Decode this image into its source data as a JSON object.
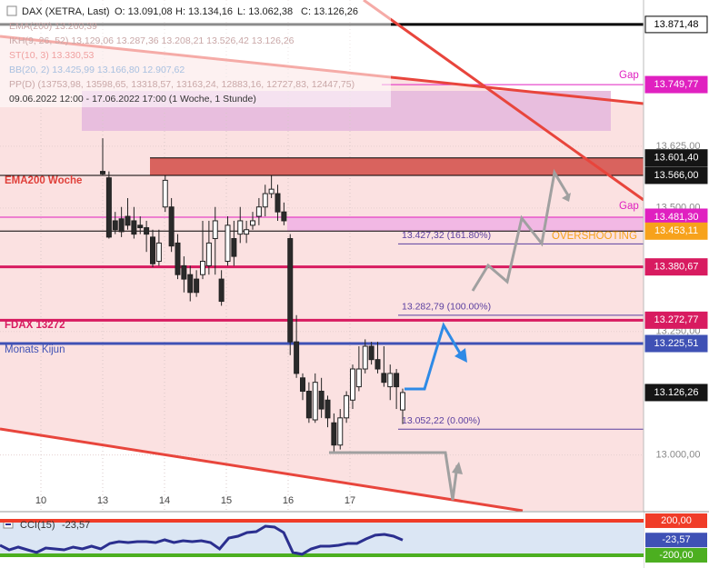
{
  "chart_data": {
    "type": "candlestick",
    "legend": {
      "symbol": "DAX (XETRA, Last)",
      "open": "O: 13.091,08",
      "high": "H: 13.134,16",
      "low": "L: 13.062,38",
      "close": "C: 13.126,26"
    },
    "indicators": [
      "EMA(200)  13.260,39",
      "IKH(9, 26, 52)  13.129,06  13.287,36  13.208,21  13.526,42  13.126,26",
      "ST(10, 3)  13.330,53",
      "BB(20, 2)  13.425,99  13.166,80  12.907,62",
      "PP(D)  (13753,98, 13598,65, 13318,57, 13163,24, 12883,16, 12727,83, 12447,75)"
    ],
    "period": "09.06.2022 12:00 - 17.06.2022 17:00   (1 Woche, 1 Stunde)",
    "days": [
      "10",
      "13",
      "14",
      "15",
      "16",
      "17"
    ],
    "candles": {
      "open": [
        13574,
        13561,
        13474,
        13478,
        13483,
        13474,
        13465,
        13460,
        13441,
        13392,
        13502,
        13502,
        13429,
        13383,
        13365,
        13356,
        13365,
        13383,
        13438,
        13356,
        13392,
        13438,
        13447,
        13447,
        13465,
        13483,
        13502,
        13529,
        13529,
        13492,
        13438,
        13229,
        13156,
        13129,
        13071,
        13129,
        13111,
        13065,
        13020,
        13075,
        13111,
        13138,
        13174,
        13220,
        13193,
        13165,
        13138,
        13165,
        13091.08
      ],
      "high": [
        13641,
        13574,
        13492,
        13502,
        13520,
        13502,
        13483,
        13474,
        13456,
        13456,
        13565,
        13520,
        13447,
        13402,
        13383,
        13374,
        13474,
        13474,
        13502,
        13374,
        13483,
        13474,
        13502,
        13474,
        13492,
        13520,
        13547,
        13565,
        13547,
        13511,
        13447,
        13283,
        13165,
        13147,
        13165,
        13156,
        13120,
        13084,
        13093,
        13129,
        13183,
        13220,
        13234,
        13229,
        13229,
        13220,
        13183,
        13174,
        13134.16
      ],
      "low": [
        13565,
        13438,
        13447,
        13441,
        13456,
        13438,
        13447,
        13411,
        13380,
        13383,
        13492,
        13411,
        13356,
        13329,
        13311,
        13320,
        13356,
        13365,
        13365,
        13302,
        13383,
        13383,
        13429,
        13429,
        13456,
        13465,
        13483,
        13520,
        13474,
        13465,
        13202,
        13156,
        13111,
        13065,
        13065,
        13075,
        13056,
        13007,
        13011,
        13065,
        13093,
        13129,
        13165,
        13183,
        13165,
        13138,
        13111,
        13093,
        13062.38
      ],
      "close": [
        13569,
        13441,
        13456,
        13452,
        13465,
        13447,
        13460,
        13447,
        13387,
        13429,
        13556,
        13423,
        13365,
        13356,
        13329,
        13329,
        13392,
        13429,
        13474,
        13311,
        13465,
        13402,
        13474,
        13456,
        13474,
        13502,
        13529,
        13538,
        13492,
        13474,
        13229,
        13165,
        13129,
        13075,
        13147,
        13093,
        13075,
        13020,
        13075,
        13120,
        13174,
        13174,
        13220,
        13193,
        13174,
        13147,
        13165,
        13138,
        13126.26
      ]
    },
    "ylim": [
      12887,
      13921
    ],
    "yticks": [
      {
        "value": 13625,
        "label": "13.625,00"
      },
      {
        "value": 13500,
        "label": "13.500,00"
      },
      {
        "value": 13250,
        "label": "13.250,00"
      },
      {
        "value": 13000,
        "label": "13.000,00"
      }
    ],
    "levels": [
      {
        "value": 13871.48,
        "label": "13.871,48",
        "color": "#ffffff",
        "line_color": "#000000"
      },
      {
        "value": 13749.77,
        "label": "13.749,77",
        "color": "#e020c0",
        "line_color": "#e020c0"
      },
      {
        "value": 13601.4,
        "label": "13.601,40",
        "color": "#151515",
        "line_color": "#000000"
      },
      {
        "value": 13566.0,
        "label": "13.566,00",
        "color": "#151515",
        "line_color": "#000000"
      },
      {
        "value": 13481.3,
        "label": "13.481,30",
        "color": "#e020c0",
        "line_color": "#e020c0"
      },
      {
        "value": 13453.11,
        "label": "13.453,11",
        "color": "#f7a21b",
        "line_color": "#000000"
      },
      {
        "value": 13380.67,
        "label": "13.380,67",
        "color": "#d81b60",
        "line_color": "#d81b60"
      },
      {
        "value": 13272.77,
        "label": "13.272,77",
        "color": "#d81b60",
        "line_color": "#d81b60"
      },
      {
        "value": 13225.51,
        "label": "13.225,51",
        "color": "#3f51b5",
        "line_color": "#3f51b5"
      },
      {
        "value": 13126.26,
        "label": "13.126,26",
        "color": "#151515",
        "line_color": "#151515"
      }
    ],
    "fib": [
      {
        "value": 13427.32,
        "label": "13.427,32 (161.80%)"
      },
      {
        "value": 13282.79,
        "label": "13.282,79 (100.00%)"
      },
      {
        "value": 13052.22,
        "label": "13.052,22 (0.00%)"
      }
    ],
    "annotations": {
      "ema": "EMA200 Woche",
      "fdax": "FDAX 13272",
      "kijun": "Monats Kijun",
      "gap_top": "Gap",
      "gap_mid": "Gap",
      "overshoot": "OVERSHOOTING"
    },
    "cci": {
      "type": "line",
      "name": "CCI(15)",
      "value_label": "-23,57",
      "color": "#2b2f8f",
      "values": [
        -84,
        -137,
        -105,
        -137,
        -168,
        -116,
        -126,
        -137,
        -105,
        -126,
        -95,
        -126,
        -63,
        -42,
        -53,
        -42,
        -42,
        -53,
        -21,
        -53,
        -32,
        -42,
        -32,
        -53,
        -126,
        0,
        21,
        63,
        74,
        137,
        126,
        63,
        -168,
        -189,
        -126,
        -95,
        -95,
        -84,
        -63,
        -63,
        -11,
        32,
        42,
        21,
        -23.57
      ],
      "ylim": [
        -316,
        284
      ],
      "levels": [
        {
          "value": 200,
          "label": "200,00",
          "color": "#f03c28"
        },
        {
          "value": -23.57,
          "label": "-23,57",
          "color": "#3f51b5"
        },
        {
          "value": -200,
          "label": "-200,00",
          "color": "#4caf20"
        }
      ]
    }
  }
}
